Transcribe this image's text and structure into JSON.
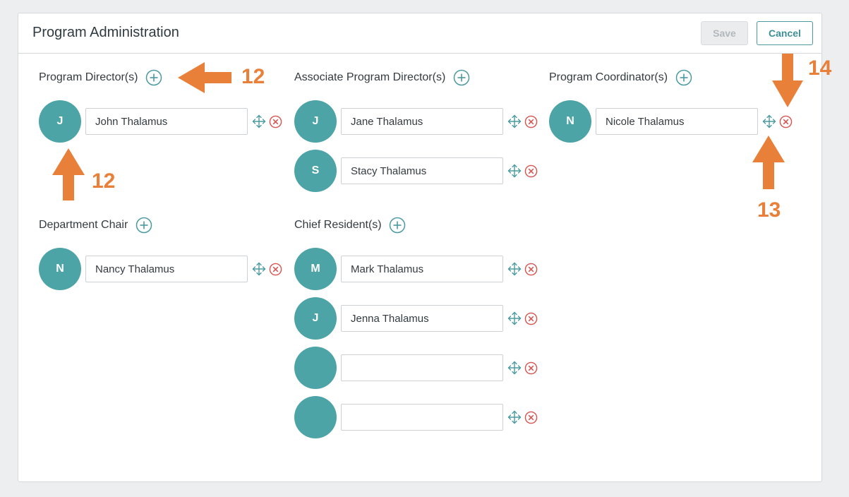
{
  "header": {
    "title": "Program Administration",
    "save_label": "Save",
    "cancel_label": "Cancel"
  },
  "sections": [
    {
      "label": "Program Director(s)",
      "members": [
        {
          "initial": "J",
          "name": "John Thalamus"
        }
      ]
    },
    {
      "label": "Associate Program Director(s)",
      "members": [
        {
          "initial": "J",
          "name": "Jane Thalamus"
        },
        {
          "initial": "S",
          "name": "Stacy Thalamus"
        }
      ]
    },
    {
      "label": "Program Coordinator(s)",
      "members": [
        {
          "initial": "N",
          "name": "Nicole Thalamus"
        }
      ]
    },
    {
      "label": "Department Chair",
      "members": [
        {
          "initial": "N",
          "name": "Nancy Thalamus"
        }
      ]
    },
    {
      "label": "Chief Resident(s)",
      "members": [
        {
          "initial": "M",
          "name": "Mark Thalamus"
        },
        {
          "initial": "J",
          "name": "Jenna Thalamus"
        },
        {
          "initial": "",
          "name": ""
        },
        {
          "initial": "",
          "name": ""
        }
      ]
    }
  ],
  "annotations": [
    "12",
    "12",
    "13",
    "14"
  ],
  "colors": {
    "accent": "#4ca4a7",
    "remove": "#d9534f",
    "annotation": "#e8803a"
  },
  "icons": {
    "add": "plus-circle-icon",
    "move": "move-arrows-icon",
    "remove": "x-circle-icon"
  }
}
